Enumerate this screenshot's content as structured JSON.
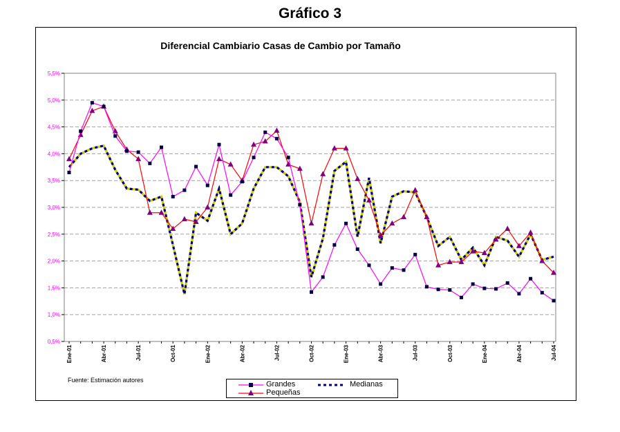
{
  "figure_title": "Gráfico 3",
  "source_note": "Fuente: Estimación autores",
  "colors": {
    "grandes": "#ff00ff",
    "grandes_marker": "#000040",
    "pequenas": "#ff0000",
    "pequenas_marker": "#800080",
    "medianas": "#000080",
    "medianas_accent": "#cccc00",
    "axis_label": "#ff00ff",
    "grid": "#a0a0a0"
  },
  "chart_data": {
    "type": "line",
    "title": "Diferencial Cambiario Casas de Cambio por Tamaño",
    "xlabel": "",
    "ylabel": "",
    "ylim": [
      0.5,
      5.5
    ],
    "yticks": [
      "0,5%",
      "1,0%",
      "1,5%",
      "2,0%",
      "2,5%",
      "3,0%",
      "3,5%",
      "4,0%",
      "4,5%",
      "5,0%",
      "5,5%"
    ],
    "x_tick_labels": [
      {
        "index": 0,
        "label": "Ene-01"
      },
      {
        "index": 3,
        "label": "Abr-01"
      },
      {
        "index": 6,
        "label": "Jul-01"
      },
      {
        "index": 9,
        "label": "Oct-01"
      },
      {
        "index": 12,
        "label": "Ene-02"
      },
      {
        "index": 15,
        "label": "Abr-02"
      },
      {
        "index": 18,
        "label": "Jul-02"
      },
      {
        "index": 21,
        "label": "Oct-02"
      },
      {
        "index": 24,
        "label": "Ene-03"
      },
      {
        "index": 27,
        "label": "Abr-03"
      },
      {
        "index": 30,
        "label": "Jul-03"
      },
      {
        "index": 33,
        "label": "Oct-03"
      },
      {
        "index": 36,
        "label": "Ene-04"
      },
      {
        "index": 39,
        "label": "Abr-04"
      },
      {
        "index": 42,
        "label": "Jul-04"
      }
    ],
    "series": [
      {
        "name": "Grandes",
        "style": "line-square",
        "values": [
          3.65,
          4.42,
          4.95,
          4.88,
          4.33,
          4.05,
          4.03,
          3.82,
          4.12,
          3.2,
          3.32,
          3.76,
          3.41,
          4.17,
          3.23,
          3.48,
          3.93,
          4.4,
          4.28,
          3.93,
          3.05,
          1.42,
          1.7,
          2.3,
          2.7,
          2.22,
          1.92,
          1.57,
          1.87,
          1.83,
          2.12,
          1.52,
          1.47,
          1.46,
          1.32,
          1.57,
          1.49,
          1.48,
          1.59,
          1.39,
          1.67,
          1.41,
          1.26
        ]
      },
      {
        "name": "Medianas",
        "style": "dashed",
        "values": [
          3.75,
          4.0,
          4.1,
          4.15,
          3.7,
          3.35,
          3.33,
          3.12,
          3.2,
          2.3,
          1.38,
          2.9,
          2.75,
          3.35,
          2.5,
          2.7,
          3.35,
          3.75,
          3.75,
          3.58,
          3.1,
          1.7,
          2.42,
          3.68,
          3.85,
          2.45,
          3.55,
          2.33,
          3.2,
          3.3,
          3.28,
          2.82,
          2.28,
          2.45,
          2.02,
          2.25,
          1.92,
          2.45,
          2.38,
          2.08,
          2.5,
          2.02,
          2.08
        ]
      },
      {
        "name": "Pequeñas",
        "style": "line-triangle",
        "values": [
          3.9,
          4.35,
          4.8,
          4.88,
          4.42,
          4.08,
          3.9,
          2.9,
          2.9,
          2.6,
          2.78,
          2.73,
          3.0,
          3.9,
          3.8,
          3.5,
          4.17,
          4.23,
          4.43,
          3.8,
          3.72,
          2.7,
          3.62,
          4.1,
          4.1,
          3.53,
          3.13,
          2.48,
          2.7,
          2.82,
          3.32,
          2.82,
          1.92,
          1.98,
          1.98,
          2.18,
          2.15,
          2.4,
          2.6,
          2.28,
          2.53,
          2.0,
          1.78
        ]
      }
    ],
    "legend": {
      "position": "bottom-center",
      "entries": [
        "Grandes",
        "Medianas",
        "Pequeñas"
      ]
    },
    "grid": true
  }
}
